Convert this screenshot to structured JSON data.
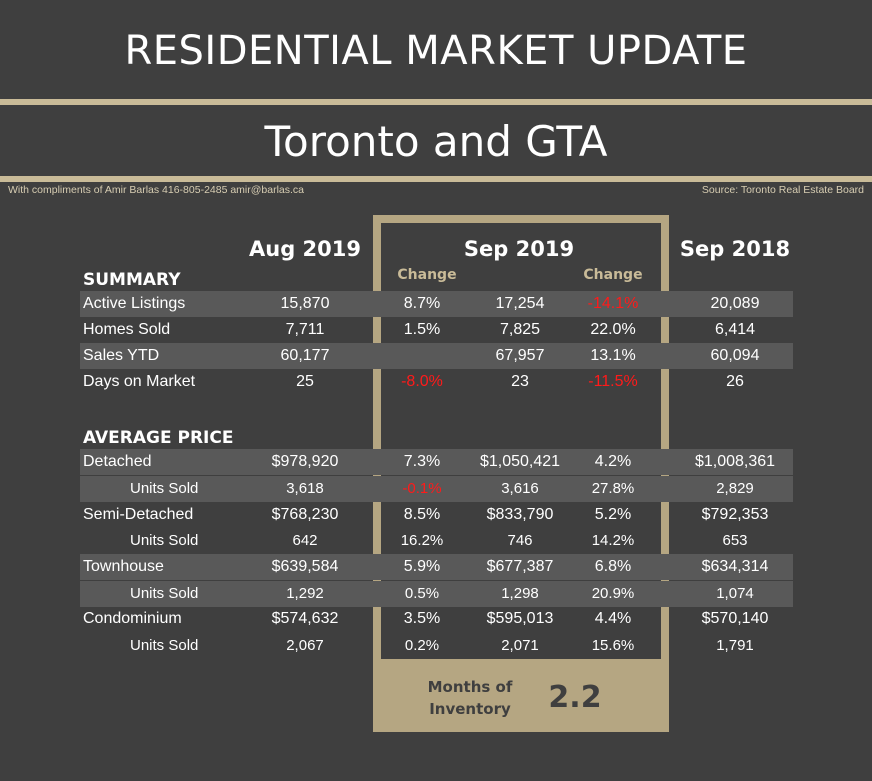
{
  "header": {
    "title": "RESIDENTIAL MARKET UPDATE",
    "subtitle": "Toronto and GTA",
    "credit": "With compliments of Amir Barlas 416-805-2485 amir@barlas.ca",
    "source": "Source: Toronto Real Estate Board"
  },
  "columns": {
    "aug": "Aug 2019",
    "sep": "Sep 2019",
    "sep_prev": "Sep 2018",
    "change1": "Change",
    "change2": "Change"
  },
  "summary": {
    "heading": "SUMMARY",
    "rows": [
      {
        "label": "Active Listings",
        "aug": "15,870",
        "chg1": "8.7%",
        "sep": "17,254",
        "chg2": "-14.1%",
        "prev": "20,089"
      },
      {
        "label": "Homes Sold",
        "aug": "7,711",
        "chg1": "1.5%",
        "sep": "7,825",
        "chg2": "22.0%",
        "prev": "6,414"
      },
      {
        "label": "Sales YTD",
        "aug": "60,177",
        "chg1": "",
        "sep": "67,957",
        "chg2": "13.1%",
        "prev": "60,094"
      },
      {
        "label": "Days on Market",
        "aug": "25",
        "chg1": "-8.0%",
        "sep": "23",
        "chg2": "-11.5%",
        "prev": "26"
      }
    ]
  },
  "price": {
    "heading": "AVERAGE PRICE",
    "rows": [
      {
        "label": "Detached",
        "aug": "$978,920",
        "chg1": "7.3%",
        "sep": "$1,050,421",
        "chg2": "4.2%",
        "prev": "$1,008,361"
      },
      {
        "label": "Units Sold",
        "aug": "3,618",
        "chg1": "-0.1%",
        "sep": "3,616",
        "chg2": "27.8%",
        "prev": "2,829"
      },
      {
        "label": "Semi-Detached",
        "aug": "$768,230",
        "chg1": "8.5%",
        "sep": "$833,790",
        "chg2": "5.2%",
        "prev": "$792,353"
      },
      {
        "label": "Units Sold",
        "aug": "642",
        "chg1": "16.2%",
        "sep": "746",
        "chg2": "14.2%",
        "prev": "653"
      },
      {
        "label": "Townhouse",
        "aug": "$639,584",
        "chg1": "5.9%",
        "sep": "$677,387",
        "chg2": "6.8%",
        "prev": "$634,314"
      },
      {
        "label": "Units Sold",
        "aug": "1,292",
        "chg1": "0.5%",
        "sep": "1,298",
        "chg2": "20.9%",
        "prev": "1,074"
      },
      {
        "label": "Condominium",
        "aug": "$574,632",
        "chg1": "3.5%",
        "sep": "$595,013",
        "chg2": "4.4%",
        "prev": "$570,140"
      },
      {
        "label": "Units Sold",
        "aug": "2,067",
        "chg1": "0.2%",
        "sep": "2,071",
        "chg2": "15.6%",
        "prev": "1,791"
      }
    ]
  },
  "inventory": {
    "label_line1": "Months of",
    "label_line2": "Inventory",
    "value": "2.2"
  },
  "colors": {
    "background": "#3f3f3f",
    "accent": "#c9bb98",
    "frame": "#b5a682",
    "stripe": "#595959",
    "negative": "#ff1a1a"
  }
}
